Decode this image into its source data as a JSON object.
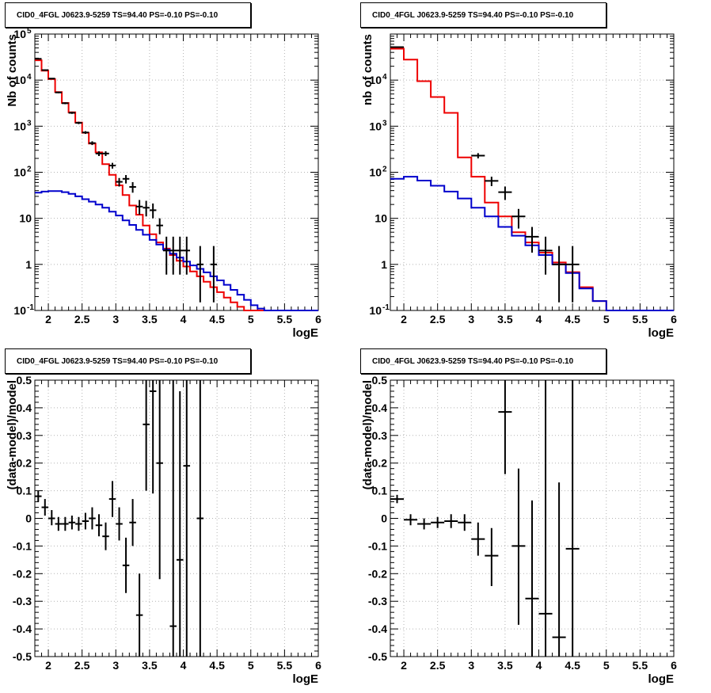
{
  "colors": {
    "data": "#000000",
    "total_model": "#ee0000",
    "source_model": "#0000cc",
    "grid": "#b4b4b4"
  },
  "chart_data": [
    {
      "type": "line",
      "title": "CID0_4FGL J0623.9-5259 TS=94.40 PS=-0.10 PS=-0.10",
      "xlabel": "logE",
      "ylabel": "Nb of counts",
      "xlim": [
        1.8,
        6
      ],
      "ylim": [
        0.1,
        100000
      ],
      "yscale": "log",
      "xticks": [
        "2",
        "2.5",
        "3",
        "3.5",
        "4",
        "4.5",
        "5",
        "5.5",
        "6"
      ],
      "yticks": [
        "10^-1",
        "1",
        "10",
        "10^2",
        "10^3",
        "10^4",
        "10^5"
      ],
      "grid": true,
      "legend": "none",
      "series": [
        {
          "kind": "step",
          "color": "red",
          "edges": [
            1.8,
            1.9,
            2.0,
            2.1,
            2.2,
            2.3,
            2.4,
            2.5,
            2.6,
            2.7,
            2.8,
            2.9,
            3.0,
            3.1,
            3.2,
            3.3,
            3.4,
            3.5,
            3.6,
            3.7,
            3.8,
            3.9,
            4.0,
            4.1,
            4.2,
            4.3,
            4.4,
            4.5,
            4.6,
            4.7,
            4.8,
            4.9,
            5.0,
            5.1,
            5.2,
            5.3,
            5.4,
            5.5,
            5.6,
            5.7,
            5.8,
            5.9,
            6.0
          ],
          "values": [
            27000,
            16000,
            10500,
            5500,
            3200,
            2000,
            1200,
            720,
            420,
            270,
            150,
            88,
            52,
            32,
            19,
            12,
            7,
            4.5,
            3,
            2.2,
            1.6,
            1.2,
            0.9,
            0.7,
            0.55,
            0.42,
            0.32,
            0.25,
            0.19,
            0.15,
            0.12,
            0.1,
            0.1,
            0.1,
            0.1,
            0.1,
            0.1,
            0.1,
            0.1,
            0.1,
            0.1,
            0.1
          ]
        },
        {
          "kind": "step",
          "color": "blue",
          "edges": [
            1.8,
            1.9,
            2.0,
            2.1,
            2.2,
            2.3,
            2.4,
            2.5,
            2.6,
            2.7,
            2.8,
            2.9,
            3.0,
            3.1,
            3.2,
            3.3,
            3.4,
            3.5,
            3.6,
            3.7,
            3.8,
            3.9,
            4.0,
            4.1,
            4.2,
            4.3,
            4.4,
            4.5,
            4.6,
            4.7,
            4.8,
            4.9,
            5.0,
            5.1,
            5.2,
            5.3,
            5.4,
            5.5,
            5.6,
            5.7,
            5.8,
            5.9,
            6.0
          ],
          "values": [
            36,
            38,
            39,
            39,
            37,
            34,
            30,
            26,
            23,
            20,
            17,
            14,
            11.5,
            9,
            7.2,
            5.6,
            4.4,
            3.4,
            2.7,
            2.1,
            1.7,
            1.4,
            1.15,
            0.95,
            0.8,
            0.67,
            0.55,
            0.45,
            0.36,
            0.28,
            0.22,
            0.17,
            0.13,
            0.11,
            0.1,
            0.1,
            0.1,
            0.1,
            0.1,
            0.1,
            0.1,
            0.1
          ]
        },
        {
          "kind": "errorbar",
          "color": "black",
          "x": [
            1.85,
            1.95,
            2.05,
            2.15,
            2.25,
            2.35,
            2.45,
            2.55,
            2.65,
            2.75,
            2.85,
            2.95,
            3.05,
            3.15,
            3.25,
            3.35,
            3.45,
            3.55,
            3.65,
            3.75,
            3.85,
            3.95,
            4.05,
            4.25,
            4.45
          ],
          "xerr": 0.05,
          "y": [
            29000,
            16500,
            10800,
            5400,
            3150,
            1950,
            1180,
            730,
            430,
            255,
            255,
            140,
            62,
            72,
            48,
            18,
            17,
            15,
            7,
            2,
            2,
            2,
            2,
            1,
            1
          ],
          "ylo": [
            28000,
            16000,
            10500,
            5200,
            3000,
            1850,
            1110,
            680,
            390,
            225,
            225,
            120,
            49,
            57,
            36,
            12,
            11,
            10,
            4.5,
            0.6,
            0.6,
            0.6,
            0.6,
            0.15,
            0.15
          ],
          "yhi": [
            30000,
            17000,
            11100,
            5600,
            3300,
            2050,
            1250,
            780,
            470,
            285,
            285,
            160,
            75,
            87,
            61,
            25,
            24,
            21,
            10,
            4,
            4,
            4,
            4,
            2.5,
            2.5
          ]
        }
      ]
    },
    {
      "type": "line",
      "title": "CID0_4FGL J0623.9-5259 TS=94.40 PS=-0.10 PS=-0.10",
      "xlabel": "logE",
      "ylabel": "nb of counts",
      "xlim": [
        1.8,
        6
      ],
      "ylim": [
        0.1,
        100000
      ],
      "yscale": "log",
      "xticks": [
        "2",
        "2.5",
        "3",
        "3.5",
        "4",
        "4.5",
        "5",
        "5.5",
        "6"
      ],
      "yticks": [
        "10^-1",
        "1",
        "10",
        "10^2",
        "10^3",
        "10^4"
      ],
      "grid": true,
      "legend": "none",
      "series": [
        {
          "kind": "step",
          "color": "red",
          "edges": [
            1.8,
            2.0,
            2.2,
            2.4,
            2.6,
            2.8,
            3.0,
            3.2,
            3.4,
            3.6,
            3.8,
            4.0,
            4.2,
            4.4,
            4.6,
            4.8,
            5.0,
            5.2,
            5.4,
            5.6,
            5.8,
            6.0
          ],
          "values": [
            48000,
            28000,
            9500,
            4300,
            1950,
            210,
            80,
            22,
            11,
            5,
            3,
            1.8,
            1.1,
            0.68,
            0.32,
            0.16,
            0.1,
            0.1,
            0.1,
            0.1,
            0.1
          ]
        },
        {
          "kind": "step",
          "color": "blue",
          "edges": [
            1.8,
            2.0,
            2.2,
            2.4,
            2.6,
            2.8,
            3.0,
            3.2,
            3.4,
            3.6,
            3.8,
            4.0,
            4.2,
            4.4,
            4.6,
            4.8,
            5.0,
            5.2,
            5.4,
            5.6,
            5.8,
            6.0
          ],
          "values": [
            72,
            80,
            66,
            51,
            38,
            27,
            17,
            11,
            6.5,
            4.2,
            2.6,
            1.6,
            1,
            0.65,
            0.3,
            0.16,
            0.1,
            0.1,
            0.1,
            0.1,
            0.1
          ]
        },
        {
          "kind": "errorbar",
          "color": "black",
          "x": [
            1.9,
            3.1,
            3.3,
            3.5,
            3.7,
            3.9,
            4.1,
            4.3,
            4.5
          ],
          "xerr": 0.1,
          "y": [
            52000,
            230,
            65,
            37,
            11,
            4,
            2,
            1,
            1
          ],
          "ylo": [
            50000,
            200,
            50,
            25,
            6,
            1.8,
            0.6,
            0.15,
            0.15
          ],
          "yhi": [
            54000,
            260,
            80,
            49,
            16,
            6.5,
            4,
            2.5,
            2.5
          ]
        }
      ]
    },
    {
      "type": "scatter",
      "title": "CID0_4FGL J0623.9-5259 TS=94.40 PS=-0.10 PS=-0.10",
      "xlabel": "logE",
      "ylabel": "(data-model)/model",
      "xlim": [
        1.8,
        6
      ],
      "ylim": [
        -0.5,
        0.5
      ],
      "xticks": [
        "2",
        "2.5",
        "3",
        "3.5",
        "4",
        "4.5",
        "5",
        "5.5",
        "6"
      ],
      "yticks": [
        "-0.5",
        "-0.4",
        "-0.3",
        "-0.2",
        "-0.1",
        "0",
        "0.1",
        "0.2",
        "0.3",
        "0.4",
        "0.5"
      ],
      "grid": true,
      "legend": "none",
      "series": [
        {
          "kind": "errorbar",
          "color": "black",
          "x": [
            1.85,
            1.95,
            2.05,
            2.15,
            2.25,
            2.35,
            2.45,
            2.55,
            2.65,
            2.75,
            2.85,
            2.95,
            3.05,
            3.15,
            3.25,
            3.35,
            3.45,
            3.55,
            3.65,
            3.85,
            3.95,
            4.05,
            4.25
          ],
          "xerr": 0.05,
          "y": [
            0.08,
            0.04,
            0.0,
            -0.02,
            -0.02,
            -0.015,
            -0.02,
            -0.01,
            0.0,
            -0.025,
            -0.065,
            0.07,
            -0.02,
            -0.17,
            -0.015,
            -0.35,
            0.34,
            0.46,
            0.2,
            -0.39,
            -0.15,
            0.19,
            0.0
          ],
          "ylo": [
            0.06,
            0.01,
            -0.025,
            -0.045,
            -0.045,
            -0.04,
            -0.045,
            -0.04,
            -0.04,
            -0.065,
            -0.115,
            0.005,
            -0.08,
            -0.27,
            -0.1,
            -0.5,
            0.1,
            0.09,
            -0.22,
            -0.5,
            -0.5,
            -0.5,
            -0.5
          ],
          "yhi": [
            0.1,
            0.07,
            0.03,
            0.005,
            0.005,
            0.01,
            0.005,
            0.02,
            0.04,
            0.015,
            -0.015,
            0.135,
            0.04,
            -0.07,
            0.07,
            -0.2,
            0.5,
            0.5,
            0.5,
            0.5,
            0.46,
            0.5,
            0.5
          ]
        }
      ]
    },
    {
      "type": "scatter",
      "title": "CID0_4FGL J0623.9-5259 TS=94.40 PS=-0.10 PS=-0.10",
      "xlabel": "logE",
      "ylabel": "(data-model)/model",
      "xlim": [
        1.8,
        6
      ],
      "ylim": [
        -0.5,
        0.5
      ],
      "xticks": [
        "2",
        "2.5",
        "3",
        "3.5",
        "4",
        "4.5",
        "5",
        "5.5",
        "6"
      ],
      "yticks": [
        "-0.5",
        "-0.4",
        "-0.3",
        "-0.2",
        "-0.1",
        "0",
        "0.1",
        "0.2",
        "0.3",
        "0.4",
        "0.5"
      ],
      "grid": true,
      "legend": "none",
      "series": [
        {
          "kind": "errorbar",
          "color": "black",
          "x": [
            1.9,
            2.1,
            2.3,
            2.5,
            2.7,
            2.9,
            3.1,
            3.3,
            3.5,
            3.7,
            3.9,
            4.1,
            4.3,
            4.5
          ],
          "xerr": 0.1,
          "y": [
            0.07,
            -0.005,
            -0.02,
            -0.015,
            -0.01,
            -0.015,
            -0.075,
            -0.135,
            0.385,
            -0.1,
            -0.29,
            -0.345,
            -0.43,
            -0.11
          ],
          "ylo": [
            0.055,
            -0.025,
            -0.04,
            -0.035,
            -0.035,
            -0.045,
            -0.135,
            -0.245,
            0.16,
            -0.385,
            -0.5,
            -0.5,
            -0.5,
            -0.5
          ],
          "yhi": [
            0.085,
            0.015,
            0.0,
            0.005,
            0.015,
            0.015,
            -0.015,
            -0.035,
            0.5,
            0.18,
            0.065,
            0.5,
            0.13,
            0.5
          ]
        }
      ]
    }
  ]
}
